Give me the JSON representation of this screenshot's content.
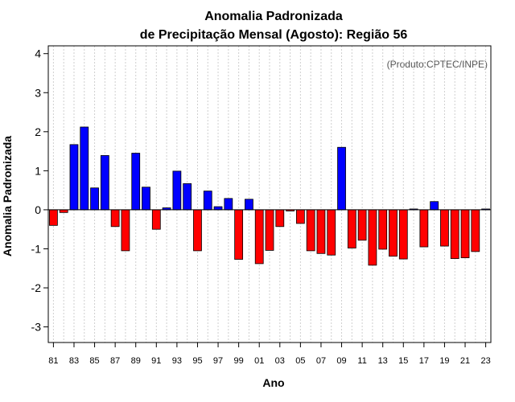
{
  "chart_data": {
    "type": "bar",
    "title": "Anomalia Padronizada",
    "subtitle": "de Precipitação Mensal (Agosto): Região 56",
    "xlabel": "Ano",
    "ylabel": "Anomalia Padronizada",
    "credit": "(Produto:CPTEC/INPE)",
    "ylim": [
      -3.4,
      4.2
    ],
    "yticks": [
      -3,
      -2,
      -1,
      0,
      1,
      2,
      3,
      4
    ],
    "grid": "vertical-dotted",
    "colors": {
      "positive": "#0000ff",
      "negative": "#ff0000",
      "outline": "#000000"
    },
    "xtick_labels": [
      "81",
      "83",
      "85",
      "87",
      "89",
      "91",
      "93",
      "95",
      "97",
      "99",
      "01",
      "03",
      "05",
      "07",
      "09",
      "11",
      "13",
      "15",
      "17",
      "19",
      "21",
      "23"
    ],
    "categories": [
      "1981",
      "1982",
      "1983",
      "1984",
      "1985",
      "1986",
      "1987",
      "1988",
      "1989",
      "1990",
      "1991",
      "1992",
      "1993",
      "1994",
      "1995",
      "1996",
      "1997",
      "1998",
      "1999",
      "2000",
      "2001",
      "2002",
      "2003",
      "2004",
      "2005",
      "2006",
      "2007",
      "2008",
      "2009",
      "2010",
      "2011",
      "2012",
      "2013",
      "2014",
      "2015",
      "2016",
      "2017",
      "2018",
      "2019",
      "2020",
      "2021",
      "2022",
      "2023"
    ],
    "values": [
      -0.4,
      -0.07,
      1.67,
      2.12,
      0.56,
      1.39,
      -0.43,
      -1.05,
      1.45,
      0.58,
      -0.5,
      0.05,
      0.99,
      0.67,
      -1.05,
      0.48,
      0.08,
      0.29,
      -1.27,
      0.27,
      -1.38,
      -1.04,
      -0.43,
      -0.03,
      -0.35,
      -1.05,
      -1.12,
      -1.16,
      1.6,
      -0.98,
      -0.78,
      -1.42,
      -1.01,
      -1.19,
      -1.26,
      0.02,
      -0.95,
      0.21,
      -0.93,
      -1.25,
      -1.23,
      -1.07,
      0.02
    ]
  }
}
